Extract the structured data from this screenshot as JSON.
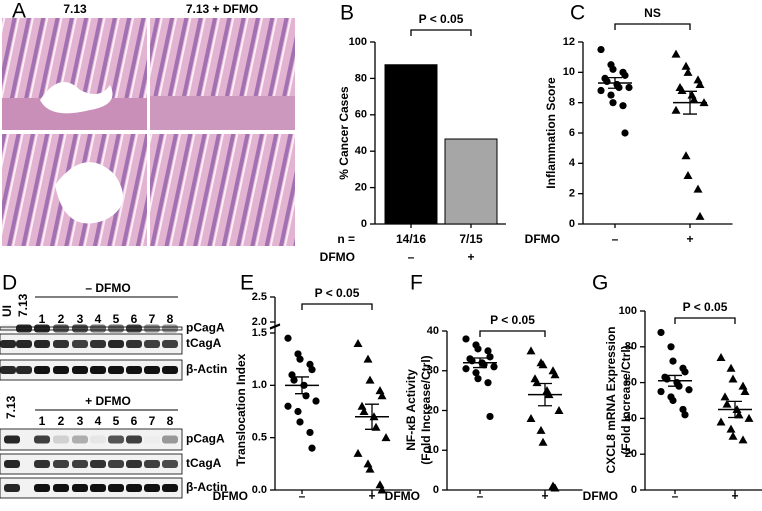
{
  "histology": {
    "panel_label": "A",
    "columns": [
      "7.13",
      "7.13 + DFMO"
    ]
  },
  "western": {
    "panel_label": "D",
    "blocks": [
      {
        "controls": [
          "UI",
          "7.13"
        ],
        "treatment": "– DFMO",
        "lanes": [
          "1",
          "2",
          "3",
          "4",
          "5",
          "6",
          "7",
          "8"
        ],
        "rows": [
          "pCagA",
          "tCagA",
          "β-Actin"
        ]
      },
      {
        "controls": [
          "7.13"
        ],
        "treatment": "+ DFMO",
        "lanes": [
          "1",
          "2",
          "3",
          "4",
          "5",
          "6",
          "7",
          "8"
        ],
        "rows": [
          "pCagA",
          "tCagA",
          "β-Actin"
        ]
      }
    ]
  },
  "chart_data": [
    {
      "type": "bar",
      "panel_label": "B",
      "ylabel": "% Cancer Cases",
      "categories": [
        "–",
        "+"
      ],
      "values": [
        87.5,
        46.7
      ],
      "colors": [
        "#000000",
        "#a6a6a6"
      ],
      "n_label": "n =",
      "n_values": [
        "14/16",
        "7/15"
      ],
      "xlabel": "DFMO",
      "annotation": "P < 0.05",
      "ylim": [
        0,
        100
      ],
      "yticks": [
        0,
        20,
        40,
        60,
        80,
        100
      ]
    },
    {
      "type": "dot",
      "panel_label": "C",
      "ylabel": "Inflammation Score",
      "categories": [
        "–",
        "+"
      ],
      "xlabel": "DFMO",
      "markers": [
        "circle",
        "triangle"
      ],
      "annotation": "NS",
      "values": [
        [
          11.5,
          10.5,
          10.2,
          10,
          9.8,
          9.6,
          9.4,
          9.2,
          9,
          9,
          8.8,
          8.5,
          8,
          7.8,
          6
        ],
        [
          11.2,
          10.4,
          10,
          9.5,
          9.2,
          9,
          8.8,
          8.5,
          8.2,
          8,
          7.5,
          4.5,
          3.2,
          2.3,
          0.5
        ]
      ],
      "means": [
        9.3,
        8.0
      ],
      "sem": [
        0.35,
        0.75
      ],
      "ylim": [
        0,
        12
      ],
      "yticks": [
        0,
        2,
        4,
        6,
        8,
        10,
        12
      ]
    },
    {
      "type": "dot",
      "panel_label": "E",
      "ylabel": "Translocation Index",
      "categories": [
        "–",
        "+"
      ],
      "xlabel": "DFMO",
      "markers": [
        "circle",
        "triangle"
      ],
      "annotation": "P < 0.05",
      "values": [
        [
          1.45,
          1.3,
          1.25,
          1.2,
          1.15,
          1.1,
          1.05,
          1.0,
          0.9,
          0.85,
          0.8,
          0.75,
          0.65,
          0.55,
          0.4
        ],
        [
          1.4,
          1.25,
          1.05,
          0.95,
          0.9,
          0.8,
          0.75,
          0.7,
          0.6,
          0.5,
          0.35,
          0.25,
          0.2,
          0.05,
          0.0
        ]
      ],
      "means": [
        1.0,
        0.7
      ],
      "sem": [
        0.08,
        0.12
      ],
      "ylim": [
        0,
        1.5
      ],
      "yticks": [
        {
          "value": 0,
          "label": "0.0"
        },
        {
          "value": 0.5,
          "label": "0.5"
        },
        {
          "value": 1,
          "label": "1.0"
        },
        {
          "value": 1.5,
          "label": "1.5"
        }
      ],
      "ylim_upper": [
        2,
        2.5
      ],
      "yticks_upper": [
        {
          "value": 2,
          "label": "2.0"
        },
        {
          "value": 2.5,
          "label": "2.5"
        }
      ]
    },
    {
      "type": "dot",
      "panel_label": "F",
      "ylabel": [
        "NF-κB Activity",
        "(Fold Increase/Ctrl)"
      ],
      "categories": [
        "–",
        "+"
      ],
      "xlabel": "DFMO",
      "markers": [
        "circle",
        "triangle"
      ],
      "annotation": "P < 0.05",
      "values": [
        [
          38,
          36.5,
          35.5,
          35,
          33.5,
          33,
          32.5,
          32,
          31.5,
          31,
          30.5,
          29.5,
          28,
          27,
          18.5
        ],
        [
          35,
          32,
          31.5,
          30,
          29,
          28,
          27,
          25,
          24,
          20,
          18,
          15,
          12,
          1,
          0.5
        ]
      ],
      "means": [
        32,
        24
      ],
      "sem": [
        1.2,
        2.8
      ],
      "ylim": [
        0,
        40
      ],
      "yticks": [
        0,
        10,
        20,
        30,
        40
      ]
    },
    {
      "type": "dot",
      "panel_label": "G",
      "ylabel": [
        "CXCL8 mRNA Expression",
        "(Fold Increase/Ctrl)"
      ],
      "categories": [
        "–",
        "+"
      ],
      "xlabel": "DFMO",
      "markers": [
        "circle",
        "triangle"
      ],
      "annotation": "P < 0.05",
      "values": [
        [
          88,
          80,
          72,
          68,
          66,
          63,
          62,
          60,
          58,
          56,
          55,
          52,
          50,
          45,
          42
        ],
        [
          74,
          68,
          62,
          58,
          55,
          52,
          48,
          45,
          42,
          40,
          38,
          34,
          30,
          28
        ]
      ],
      "means": [
        61,
        45
      ],
      "sem": [
        3,
        4.5
      ],
      "ylim": [
        0,
        100
      ],
      "yticks": [
        0,
        20,
        40,
        60,
        80,
        100
      ]
    }
  ]
}
